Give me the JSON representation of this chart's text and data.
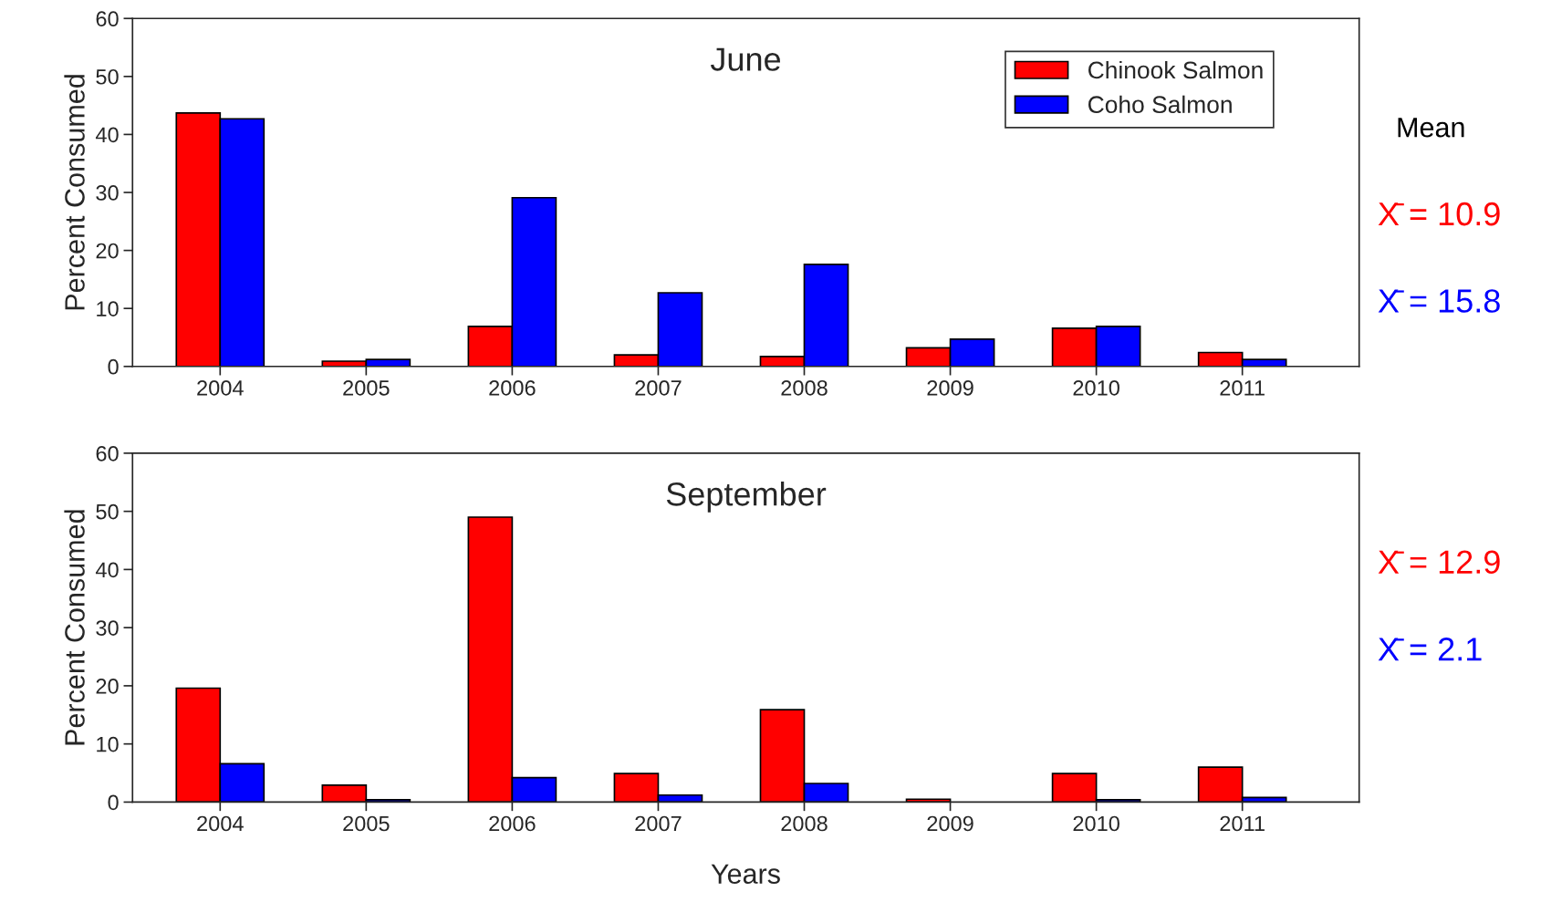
{
  "chart_data": [
    {
      "type": "bar",
      "title": "June",
      "ylabel": "Percent Consumed",
      "categories": [
        "2004",
        "2005",
        "2006",
        "2007",
        "2008",
        "2009",
        "2010",
        "2011"
      ],
      "series": [
        {
          "name": "Chinook Salmon",
          "color": "#ff0000",
          "values": [
            43.7,
            0.9,
            6.9,
            2.0,
            1.7,
            3.2,
            6.6,
            2.4
          ]
        },
        {
          "name": "Coho Salmon",
          "color": "#0000ff",
          "values": [
            42.7,
            1.2,
            29.1,
            12.7,
            17.6,
            4.7,
            6.9,
            1.2
          ]
        }
      ],
      "ylim": [
        0,
        60
      ],
      "yticks": [
        0,
        10,
        20,
        30,
        40,
        50,
        60
      ],
      "grid": false,
      "legend": "top right",
      "annotations": [
        "Mean",
        "X̄ = 10.9",
        "X̄ = 15.8"
      ]
    },
    {
      "type": "bar",
      "title": "September",
      "ylabel": "Percent Consumed",
      "xlabel": "Years",
      "categories": [
        "2004",
        "2005",
        "2006",
        "2007",
        "2008",
        "2009",
        "2010",
        "2011"
      ],
      "series": [
        {
          "color": "#ff0000",
          "values": [
            19.6,
            2.9,
            49.0,
            4.9,
            15.9,
            0.5,
            4.9,
            6.0
          ]
        },
        {
          "color": "#0000ff",
          "values": [
            6.6,
            0.4,
            4.2,
            1.2,
            3.2,
            null,
            0.4,
            0.8
          ]
        }
      ],
      "ylim": [
        0,
        60
      ],
      "yticks": [
        0,
        10,
        20,
        30,
        40,
        50,
        60
      ],
      "grid": false,
      "legend": false,
      "annotations": [
        "X̄ = 12.9",
        "X̄ = 2.1"
      ]
    }
  ]
}
